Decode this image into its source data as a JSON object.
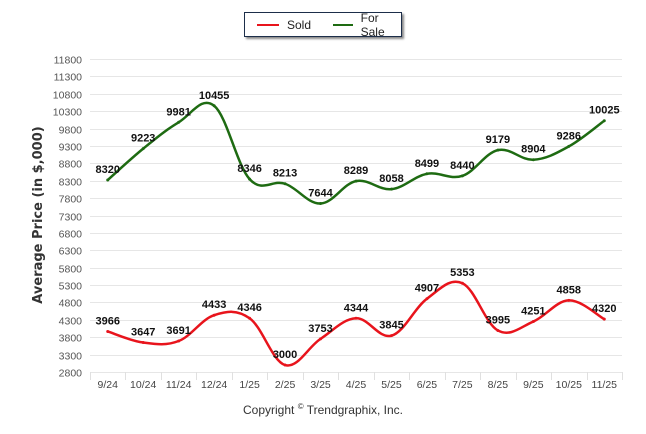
{
  "chart_data": {
    "type": "line",
    "title": "",
    "xlabel": "",
    "ylabel": "Average Price (in $,000)",
    "ylim": [
      2800,
      11800
    ],
    "yticks": [
      2800,
      3300,
      3800,
      4300,
      4800,
      5300,
      5800,
      6300,
      6800,
      7300,
      7800,
      8300,
      8800,
      9300,
      9800,
      10300,
      10800,
      11300,
      11800
    ],
    "grid": true,
    "legend_position": "top-center",
    "categories": [
      "9/24",
      "10/24",
      "11/24",
      "12/24",
      "1/25",
      "2/25",
      "3/25",
      "4/25",
      "5/25",
      "6/25",
      "7/25",
      "8/25",
      "9/25",
      "10/25",
      "11/25"
    ],
    "series": [
      {
        "name": "Sold",
        "color": "#e8141c",
        "values": [
          3966,
          3647,
          3691,
          4433,
          4346,
          3000,
          3753,
          4344,
          3845,
          4907,
          5353,
          3995,
          4251,
          4858,
          4320
        ]
      },
      {
        "name": "For Sale",
        "color": "#1e6b12",
        "values": [
          8320,
          9223,
          9981,
          10455,
          8346,
          8213,
          7644,
          8289,
          8058,
          8499,
          8440,
          9179,
          8904,
          9286,
          10025
        ]
      }
    ]
  },
  "legend": {
    "items": [
      {
        "label": "Sold",
        "color": "#e8141c"
      },
      {
        "label": "For Sale",
        "color": "#1e6b12"
      }
    ]
  },
  "footer": {
    "copyright_prefix": "Copyright ",
    "copyright_symbol": "©",
    "copyright_suffix": " Trendgraphix, Inc."
  }
}
